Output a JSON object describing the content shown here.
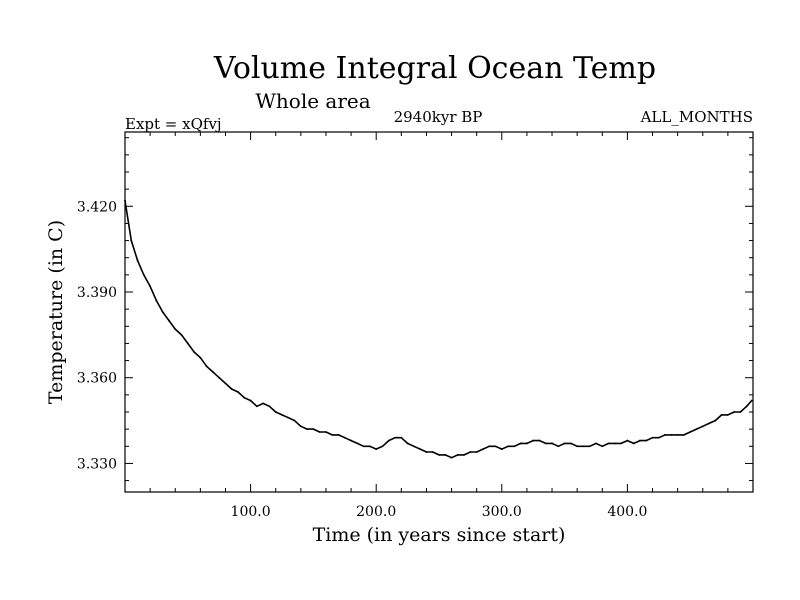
{
  "chart_data": {
    "type": "line",
    "title": "Volume Integral Ocean Temp",
    "subtitle": "Whole area",
    "left_label": "Expt = xQfvj",
    "center_label": "2940kyr BP",
    "right_label": "ALL_MONTHS",
    "xlabel": "Time (in years since start)",
    "ylabel": "Temperature (in C)",
    "xlim": [
      0,
      500
    ],
    "ylim": [
      3.32,
      3.446
    ],
    "xticks": [
      100,
      200,
      300,
      400
    ],
    "xtick_labels": [
      "100.0",
      "200.0",
      "300.0",
      "400.0"
    ],
    "yticks": [
      3.33,
      3.36,
      3.39,
      3.42
    ],
    "ytick_labels": [
      "3.330",
      "3.360",
      "3.390",
      "3.420"
    ],
    "grid": false,
    "series": [
      {
        "name": "Volume Integral Ocean Temp",
        "color": "#000000",
        "x": [
          0,
          5,
          10,
          15,
          20,
          25,
          30,
          35,
          40,
          45,
          50,
          55,
          60,
          65,
          70,
          75,
          80,
          85,
          90,
          95,
          100,
          105,
          110,
          115,
          120,
          125,
          130,
          135,
          140,
          145,
          150,
          155,
          160,
          165,
          170,
          175,
          180,
          185,
          190,
          195,
          200,
          205,
          210,
          215,
          220,
          225,
          230,
          235,
          240,
          245,
          250,
          255,
          260,
          265,
          270,
          275,
          280,
          285,
          290,
          295,
          300,
          305,
          310,
          315,
          320,
          325,
          330,
          335,
          340,
          345,
          350,
          355,
          360,
          365,
          370,
          375,
          380,
          385,
          390,
          395,
          400,
          405,
          410,
          415,
          420,
          425,
          430,
          435,
          440,
          445,
          450,
          455,
          460,
          465,
          470,
          475,
          480,
          485,
          490,
          495,
          499
        ],
        "values": [
          3.422,
          3.408,
          3.401,
          3.396,
          3.392,
          3.387,
          3.383,
          3.38,
          3.377,
          3.375,
          3.372,
          3.369,
          3.367,
          3.364,
          3.362,
          3.36,
          3.358,
          3.356,
          3.355,
          3.353,
          3.352,
          3.35,
          3.351,
          3.35,
          3.348,
          3.347,
          3.346,
          3.345,
          3.343,
          3.342,
          3.342,
          3.341,
          3.341,
          3.34,
          3.34,
          3.339,
          3.338,
          3.337,
          3.336,
          3.336,
          3.335,
          3.336,
          3.338,
          3.339,
          3.339,
          3.337,
          3.336,
          3.335,
          3.334,
          3.334,
          3.333,
          3.333,
          3.332,
          3.333,
          3.333,
          3.334,
          3.334,
          3.335,
          3.336,
          3.336,
          3.335,
          3.336,
          3.336,
          3.337,
          3.337,
          3.338,
          3.338,
          3.337,
          3.337,
          3.336,
          3.337,
          3.337,
          3.336,
          3.336,
          3.336,
          3.337,
          3.336,
          3.337,
          3.337,
          3.337,
          3.338,
          3.337,
          3.338,
          3.338,
          3.339,
          3.339,
          3.34,
          3.34,
          3.34,
          3.34,
          3.341,
          3.342,
          3.343,
          3.344,
          3.345,
          3.347,
          3.347,
          3.348,
          3.348,
          3.35,
          3.352
        ]
      }
    ]
  }
}
